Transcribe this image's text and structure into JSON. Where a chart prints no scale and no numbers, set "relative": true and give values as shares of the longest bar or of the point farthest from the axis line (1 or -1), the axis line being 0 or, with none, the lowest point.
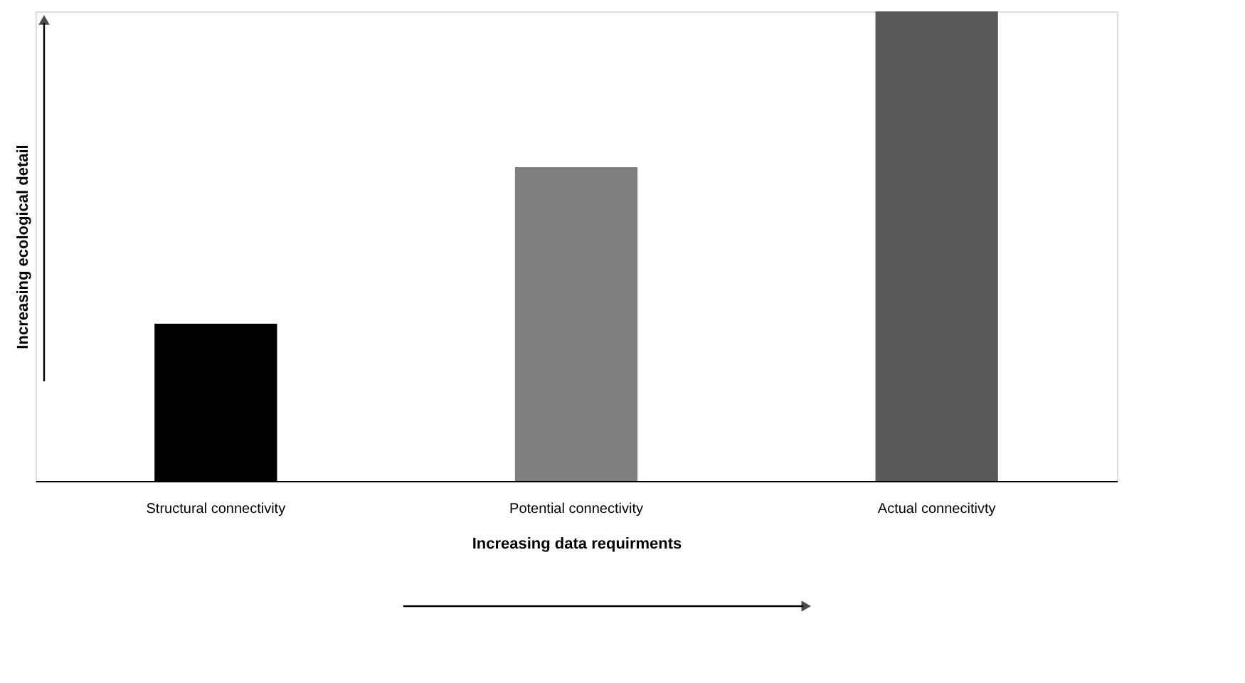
{
  "chart_data": {
    "type": "bar",
    "relative": true,
    "xlabel": "Increasing data requirments",
    "ylabel": "Increasing ecological detail",
    "categories": [
      "Structural connectivity",
      "Potential connectivity",
      "Actual connecitivty"
    ],
    "values": [
      0.335,
      0.668,
      1
    ],
    "colors": [
      "#000000",
      "#7f7f7f",
      "#595959"
    ],
    "grid": false,
    "legend": false
  }
}
